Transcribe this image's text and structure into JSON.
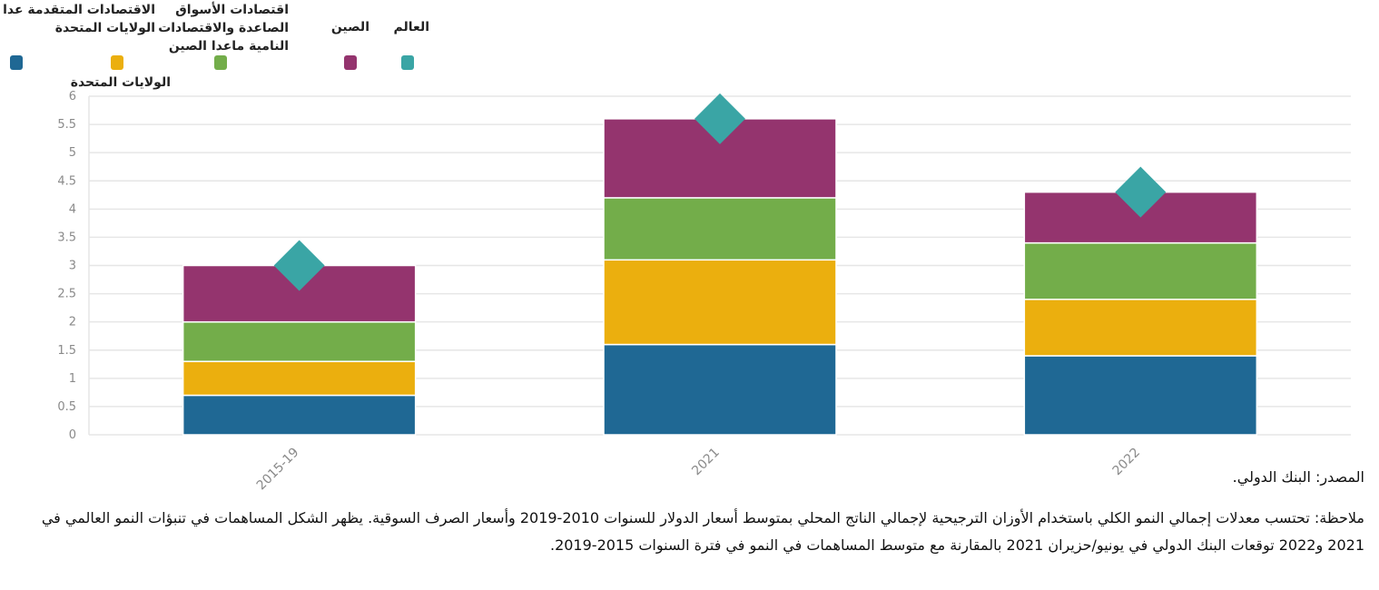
{
  "chart_data": {
    "type": "bar",
    "stacked": true,
    "categories": [
      "2015-19",
      "2021",
      "2022"
    ],
    "series": [
      {
        "name": "الاقتصادات المتقدمة عدا الولايات المتحدة",
        "color": "#1f6894",
        "values": [
          0.7,
          1.6,
          1.4
        ]
      },
      {
        "name": "الولايات المتحدة",
        "color": "#ebaf0e",
        "values": [
          0.6,
          1.5,
          1.0
        ]
      },
      {
        "name": "اقتصادات الأسواق الصاعدة والاقتصادات النامية ماعدا الصين",
        "color": "#73ad4a",
        "values": [
          0.7,
          1.1,
          1.0
        ]
      },
      {
        "name": "الصين",
        "color": "#94346e",
        "values": [
          1.0,
          1.4,
          0.9
        ]
      }
    ],
    "markers": {
      "name": "العالم",
      "color": "#3aa5a5",
      "shape": "diamond",
      "values": [
        3.0,
        5.6,
        4.3
      ]
    },
    "ylim": [
      0,
      6
    ],
    "yticks": [
      "0",
      "0.5",
      "1",
      "1.5",
      "2",
      "2.5",
      "3",
      "3.5",
      "4",
      "4.5",
      "5",
      "5.5",
      "6"
    ],
    "grid": true,
    "legend_position": "top-left"
  },
  "source": "المصدر: البنك الدولي.",
  "note": "ملاحظة: تحتسب معدلات إجمالي النمو الكلي باستخدام الأوزان الترجيحية لإجمالي الناتج المحلي بمتوسط أسعار الدولار للسنوات 2010-2019 وأسعار الصرف السوقية. يظهر الشكل المساهمات في تنبؤات النمو العالمي في 2021 و2022 توقعات البنك الدولي في يونيو/حزيران 2021 بالمقارنة مع متوسط المساهمات في النمو في فترة السنوات 2015-2019."
}
